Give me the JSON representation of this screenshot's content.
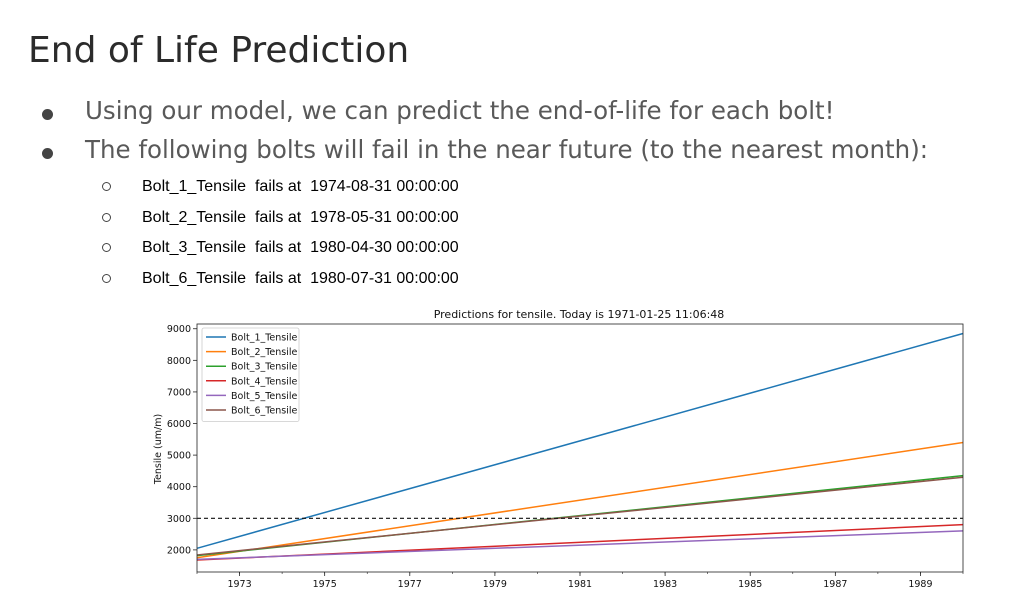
{
  "slide": {
    "title": "End of Life Prediction",
    "bullets": [
      "Using our model, we can predict the end-of-life for each bolt!",
      "The following bolts will fail in the near future (to the nearest month):"
    ],
    "failures": [
      {
        "bolt": "Bolt_1_Tensile",
        "text": "fails at",
        "date": "1974-08-31 00:00:00"
      },
      {
        "bolt": "Bolt_2_Tensile",
        "text": "fails at",
        "date": "1978-05-31 00:00:00"
      },
      {
        "bolt": "Bolt_3_Tensile",
        "text": "fails at",
        "date": "1980-04-30 00:00:00"
      },
      {
        "bolt": "Bolt_6_Tensile",
        "text": "fails at",
        "date": "1980-07-31 00:00:00"
      }
    ]
  },
  "chart_data": {
    "type": "line",
    "title": "Predictions for tensile. Today is 1971-01-25 11:06:48",
    "xlabel": "",
    "ylabel": "Tensile (um/m)",
    "xlim": [
      1972.0,
      1990.0
    ],
    "ylim": [
      1300,
      9150
    ],
    "xticks": [
      1973,
      1975,
      1977,
      1979,
      1981,
      1983,
      1985,
      1987,
      1989
    ],
    "yticks": [
      2000,
      3000,
      4000,
      5000,
      6000,
      7000,
      8000,
      9000
    ],
    "threshold": 3000,
    "legend_position": "upper-left",
    "series": [
      {
        "name": "Bolt_1_Tensile",
        "color": "#1f77b4",
        "x": [
          1972.0,
          1990.0
        ],
        "y": [
          2050,
          8850
        ]
      },
      {
        "name": "Bolt_2_Tensile",
        "color": "#ff7f0e",
        "x": [
          1972.0,
          1990.0
        ],
        "y": [
          1750,
          5400
        ]
      },
      {
        "name": "Bolt_3_Tensile",
        "color": "#2ca02c",
        "x": [
          1972.0,
          1990.0
        ],
        "y": [
          1820,
          4350
        ]
      },
      {
        "name": "Bolt_4_Tensile",
        "color": "#d62728",
        "x": [
          1972.0,
          1990.0
        ],
        "y": [
          1680,
          2800
        ]
      },
      {
        "name": "Bolt_5_Tensile",
        "color": "#9467bd",
        "x": [
          1972.0,
          1990.0
        ],
        "y": [
          1700,
          2600
        ]
      },
      {
        "name": "Bolt_6_Tensile",
        "color": "#8c564b",
        "x": [
          1972.0,
          1990.0
        ],
        "y": [
          1840,
          4300
        ]
      }
    ]
  }
}
